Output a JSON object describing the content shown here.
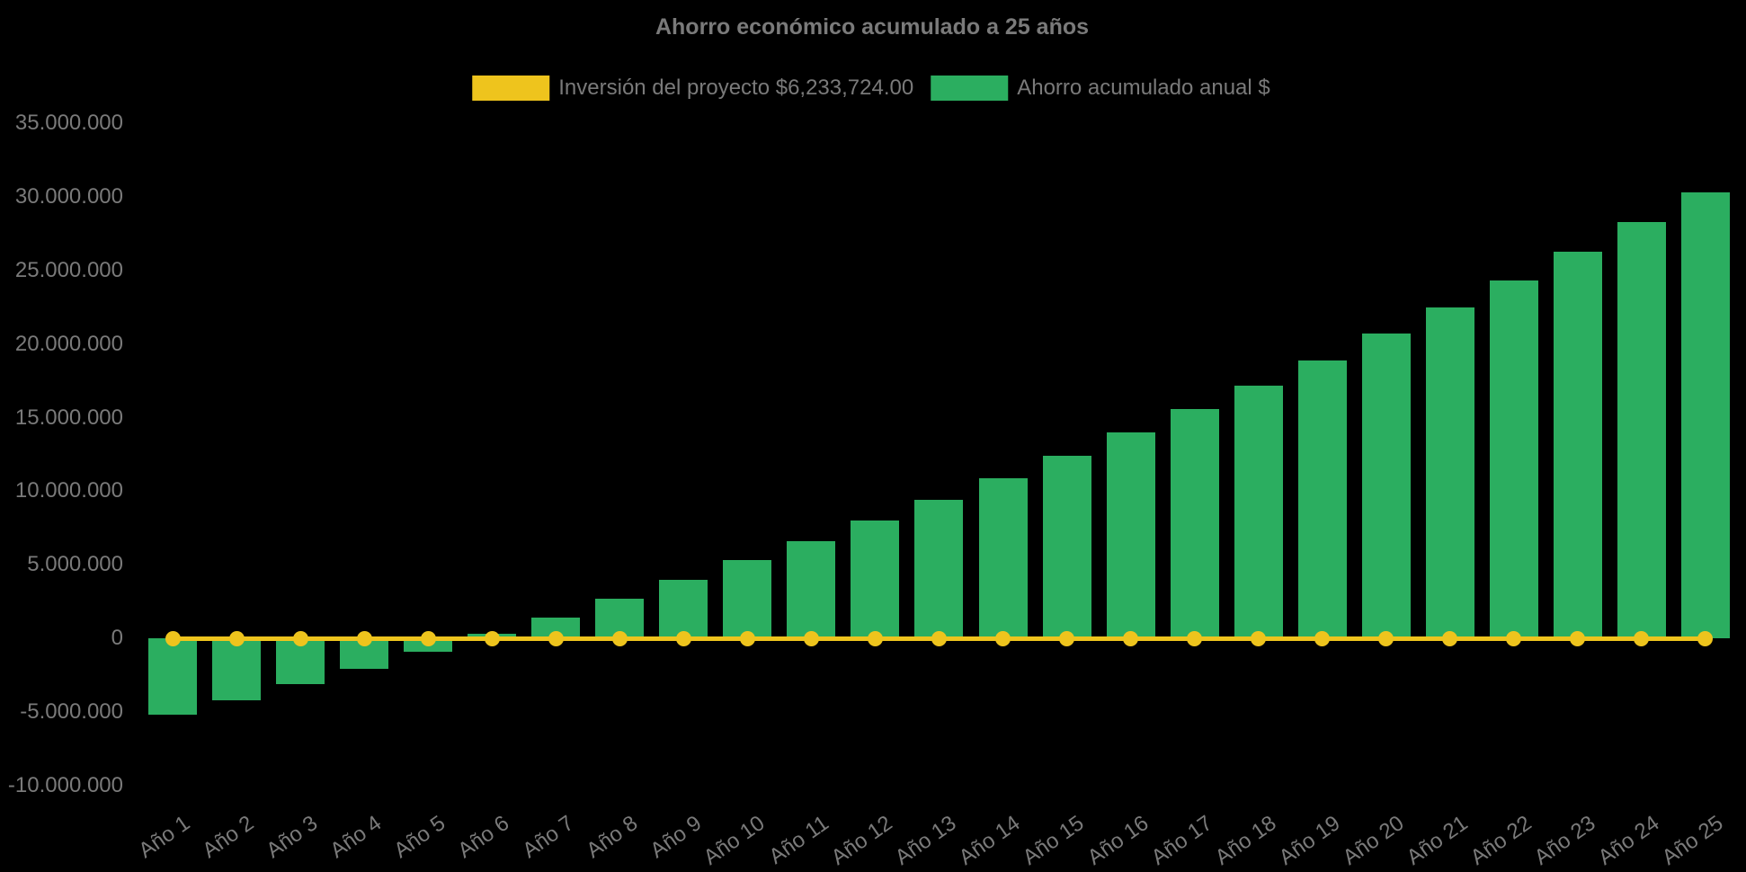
{
  "title": "Ahorro económico acumulado a 25 años",
  "colors": {
    "background": "#000000",
    "text": "#7a7a7a",
    "investment_yellow": "#EEC41D",
    "savings_green": "#2BAE60"
  },
  "legend": {
    "investment": {
      "label": "Inversión del proyecto $6,233,724.00",
      "color": "#EEC41D",
      "marker": "bar-swatch"
    },
    "savings": {
      "label": "Ahorro acumulado anual $",
      "color": "#2BAE60",
      "marker": "bar-swatch"
    }
  },
  "chart_data": {
    "type": "bar",
    "title": "Ahorro económico acumulado a 25 años",
    "xlabel": "",
    "ylabel": "",
    "categories": [
      "Año 1",
      "Año 2",
      "Año 3",
      "Año 4",
      "Año 5",
      "Año 6",
      "Año 7",
      "Año 8",
      "Año 9",
      "Año 10",
      "Año 11",
      "Año 12",
      "Año 13",
      "Año 14",
      "Año 15",
      "Año 16",
      "Año 17",
      "Año 18",
      "Año 19",
      "Año 20",
      "Año 21",
      "Año 22",
      "Año 23",
      "Año 24",
      "Año 25"
    ],
    "series": [
      {
        "name": "Inversión del proyecto $6,233,724.00",
        "type": "line",
        "color": "#EEC41D",
        "marker": "circle",
        "values": [
          0,
          0,
          0,
          0,
          0,
          0,
          0,
          0,
          0,
          0,
          0,
          0,
          0,
          0,
          0,
          0,
          0,
          0,
          0,
          0,
          0,
          0,
          0,
          0,
          0
        ]
      },
      {
        "name": "Ahorro acumulado anual $",
        "type": "bar",
        "color": "#2BAE60",
        "values": [
          -5200000,
          -4200000,
          -3100000,
          -2100000,
          -900000,
          300000,
          1400000,
          2700000,
          4000000,
          5300000,
          6600000,
          8000000,
          9400000,
          10900000,
          12400000,
          14000000,
          15600000,
          17200000,
          18900000,
          20700000,
          22500000,
          24300000,
          26300000,
          28300000,
          30300000
        ]
      }
    ],
    "ylim": [
      -10000000,
      35000000
    ],
    "ytick_interval": 5000000,
    "ytick_labels": [
      "35.000.000",
      "30.000.000",
      "25.000.000",
      "20.000.000",
      "15.000.000",
      "10.000.000",
      "5.000.000",
      "0",
      "-5.000.000",
      "-10.000.000"
    ],
    "grid": false,
    "legend_position": "top-center",
    "background": "#000000"
  }
}
